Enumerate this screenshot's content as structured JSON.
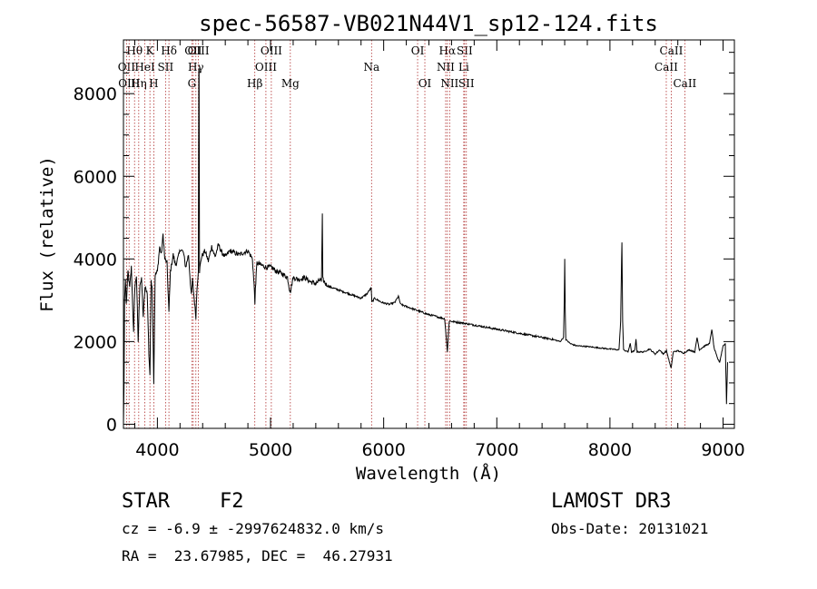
{
  "chart_data": {
    "type": "line",
    "title": "spec-56587-VB021N44V1_sp12-124.fits",
    "xlabel": "Wavelength (Å)",
    "ylabel": "Flux (relative)",
    "xlim": [
      3700,
      9100
    ],
    "ylim": [
      -100,
      9300
    ],
    "xticks": [
      4000,
      5000,
      6000,
      7000,
      8000,
      9000
    ],
    "yticks": [
      0,
      2000,
      4000,
      6000,
      8000
    ],
    "spectral_lines": [
      {
        "label": "Hθ",
        "wave": 3798,
        "row": 1
      },
      {
        "label": "OII",
        "wave": 3727,
        "row": 2
      },
      {
        "label": "OIII",
        "wave": 3750,
        "row": 3
      },
      {
        "label": "K",
        "wave": 3934,
        "row": 1
      },
      {
        "label": "HeI",
        "wave": 3889,
        "row": 2
      },
      {
        "label": "Hη",
        "wave": 3835,
        "row": 3
      },
      {
        "label": "SII",
        "wave": 4072,
        "row": 2
      },
      {
        "label": "H",
        "wave": 3968,
        "row": 3
      },
      {
        "label": "Hδ",
        "wave": 4102,
        "row": 1
      },
      {
        "label": "OII",
        "wave": 4317,
        "row": 1
      },
      {
        "label": "Hγ",
        "wave": 4340,
        "row": 2
      },
      {
        "label": "G",
        "wave": 4305,
        "row": 3
      },
      {
        "label": "OIII",
        "wave": 4363,
        "row": 1
      },
      {
        "label": "OIII",
        "wave": 5007,
        "row": 1
      },
      {
        "label": "OIII",
        "wave": 4959,
        "row": 2
      },
      {
        "label": "Hβ",
        "wave": 4861,
        "row": 3
      },
      {
        "label": "Mg",
        "wave": 5175,
        "row": 3
      },
      {
        "label": "Na",
        "wave": 5893,
        "row": 2
      },
      {
        "label": "OI",
        "wave": 6300,
        "row": 1
      },
      {
        "label": "OI",
        "wave": 6364,
        "row": 3
      },
      {
        "label": "Hα",
        "wave": 6563,
        "row": 1
      },
      {
        "label": "NII",
        "wave": 6548,
        "row": 2
      },
      {
        "label": "NII",
        "wave": 6583,
        "row": 3
      },
      {
        "label": "SII",
        "wave": 6716,
        "row": 1
      },
      {
        "label": "Li",
        "wave": 6708,
        "row": 2
      },
      {
        "label": "SII",
        "wave": 6731,
        "row": 3
      },
      {
        "label": "CaII",
        "wave": 8542,
        "row": 1
      },
      {
        "label": "CaII",
        "wave": 8498,
        "row": 2
      },
      {
        "label": "CaII",
        "wave": 8662,
        "row": 3
      }
    ],
    "spectrum_knots": [
      [
        3700,
        0
      ],
      [
        3705,
        900
      ],
      [
        3710,
        3000
      ],
      [
        3718,
        3500
      ],
      [
        3725,
        2900
      ],
      [
        3740,
        3700
      ],
      [
        3755,
        3300
      ],
      [
        3770,
        3800
      ],
      [
        3790,
        2200
      ],
      [
        3800,
        3300
      ],
      [
        3815,
        3600
      ],
      [
        3830,
        2000
      ],
      [
        3845,
        3400
      ],
      [
        3860,
        3500
      ],
      [
        3875,
        2600
      ],
      [
        3890,
        3300
      ],
      [
        3910,
        3200
      ],
      [
        3925,
        1700
      ],
      [
        3934,
        1200
      ],
      [
        3945,
        3500
      ],
      [
        3955,
        3300
      ],
      [
        3968,
        1000
      ],
      [
        3980,
        3600
      ],
      [
        4000,
        3700
      ],
      [
        4020,
        4300
      ],
      [
        4035,
        4100
      ],
      [
        4050,
        4600
      ],
      [
        4065,
        4000
      ],
      [
        4085,
        3900
      ],
      [
        4102,
        2700
      ],
      [
        4115,
        3700
      ],
      [
        4140,
        4100
      ],
      [
        4160,
        3850
      ],
      [
        4180,
        4000
      ],
      [
        4205,
        4250
      ],
      [
        4230,
        4150
      ],
      [
        4250,
        3800
      ],
      [
        4275,
        4100
      ],
      [
        4300,
        3100
      ],
      [
        4310,
        3500
      ],
      [
        4340,
        2600
      ],
      [
        4350,
        3300
      ],
      [
        4362,
        3700
      ],
      [
        4366,
        8600
      ],
      [
        4368,
        8600
      ],
      [
        4372,
        3700
      ],
      [
        4390,
        4050
      ],
      [
        4420,
        4200
      ],
      [
        4450,
        3950
      ],
      [
        4480,
        4300
      ],
      [
        4510,
        4050
      ],
      [
        4540,
        4350
      ],
      [
        4570,
        4150
      ],
      [
        4600,
        4050
      ],
      [
        4640,
        4200
      ],
      [
        4680,
        4150
      ],
      [
        4720,
        4100
      ],
      [
        4760,
        4150
      ],
      [
        4800,
        4200
      ],
      [
        4840,
        4000
      ],
      [
        4858,
        3200
      ],
      [
        4862,
        2900
      ],
      [
        4866,
        3300
      ],
      [
        4880,
        3900
      ],
      [
        4920,
        3850
      ],
      [
        4960,
        3800
      ],
      [
        5010,
        3800
      ],
      [
        5050,
        3700
      ],
      [
        5100,
        3650
      ],
      [
        5150,
        3550
      ],
      [
        5172,
        3200
      ],
      [
        5178,
        3250
      ],
      [
        5200,
        3550
      ],
      [
        5250,
        3500
      ],
      [
        5300,
        3550
      ],
      [
        5350,
        3450
      ],
      [
        5400,
        3400
      ],
      [
        5440,
        3500
      ],
      [
        5450,
        3450
      ],
      [
        5455,
        4400
      ],
      [
        5458,
        5100
      ],
      [
        5462,
        3500
      ],
      [
        5500,
        3350
      ],
      [
        5550,
        3300
      ],
      [
        5600,
        3250
      ],
      [
        5650,
        3200
      ],
      [
        5700,
        3150
      ],
      [
        5750,
        3100
      ],
      [
        5800,
        3050
      ],
      [
        5850,
        3150
      ],
      [
        5890,
        3300
      ],
      [
        5896,
        2950
      ],
      [
        5920,
        3050
      ],
      [
        5980,
        2950
      ],
      [
        6050,
        2900
      ],
      [
        6100,
        2950
      ],
      [
        6130,
        3100
      ],
      [
        6150,
        2900
      ],
      [
        6200,
        2850
      ],
      [
        6250,
        2800
      ],
      [
        6300,
        2750
      ],
      [
        6350,
        2700
      ],
      [
        6400,
        2650
      ],
      [
        6450,
        2620
      ],
      [
        6500,
        2580
      ],
      [
        6540,
        2550
      ],
      [
        6556,
        2000
      ],
      [
        6563,
        1750
      ],
      [
        6570,
        2100
      ],
      [
        6580,
        2500
      ],
      [
        6620,
        2480
      ],
      [
        6700,
        2450
      ],
      [
        6800,
        2400
      ],
      [
        6900,
        2350
      ],
      [
        7000,
        2300
      ],
      [
        7100,
        2250
      ],
      [
        7200,
        2200
      ],
      [
        7300,
        2150
      ],
      [
        7400,
        2100
      ],
      [
        7500,
        2050
      ],
      [
        7560,
        2000
      ],
      [
        7590,
        2100
      ],
      [
        7596,
        3000
      ],
      [
        7600,
        4000
      ],
      [
        7605,
        2700
      ],
      [
        7610,
        2050
      ],
      [
        7650,
        1950
      ],
      [
        7700,
        1900
      ],
      [
        7800,
        1880
      ],
      [
        7900,
        1850
      ],
      [
        8000,
        1820
      ],
      [
        8080,
        1800
      ],
      [
        8095,
        2500
      ],
      [
        8100,
        3500
      ],
      [
        8106,
        4400
      ],
      [
        8112,
        2500
      ],
      [
        8120,
        1800
      ],
      [
        8160,
        1750
      ],
      [
        8180,
        1950
      ],
      [
        8190,
        1750
      ],
      [
        8220,
        1780
      ],
      [
        8230,
        2050
      ],
      [
        8240,
        1750
      ],
      [
        8300,
        1750
      ],
      [
        8350,
        1820
      ],
      [
        8400,
        1700
      ],
      [
        8440,
        1800
      ],
      [
        8470,
        1700
      ],
      [
        8500,
        1780
      ],
      [
        8540,
        1350
      ],
      [
        8560,
        1750
      ],
      [
        8600,
        1780
      ],
      [
        8650,
        1720
      ],
      [
        8700,
        1800
      ],
      [
        8750,
        1750
      ],
      [
        8770,
        2100
      ],
      [
        8790,
        1800
      ],
      [
        8840,
        1900
      ],
      [
        8880,
        1950
      ],
      [
        8900,
        2300
      ],
      [
        8920,
        1850
      ],
      [
        8950,
        1600
      ],
      [
        8970,
        1500
      ],
      [
        8985,
        1700
      ],
      [
        9000,
        1900
      ],
      [
        9020,
        1950
      ],
      [
        9030,
        500
      ],
      [
        9040,
        1500
      ]
    ]
  },
  "info": {
    "object_type": "STAR",
    "subclass": "F2",
    "survey": "LAMOST DR3",
    "cz": "cz = -6.9 ± -2997624832.0 km/s",
    "obs_date": "Obs-Date: 20131021",
    "coords": "RA =  23.67985, DEC =  46.27931"
  }
}
